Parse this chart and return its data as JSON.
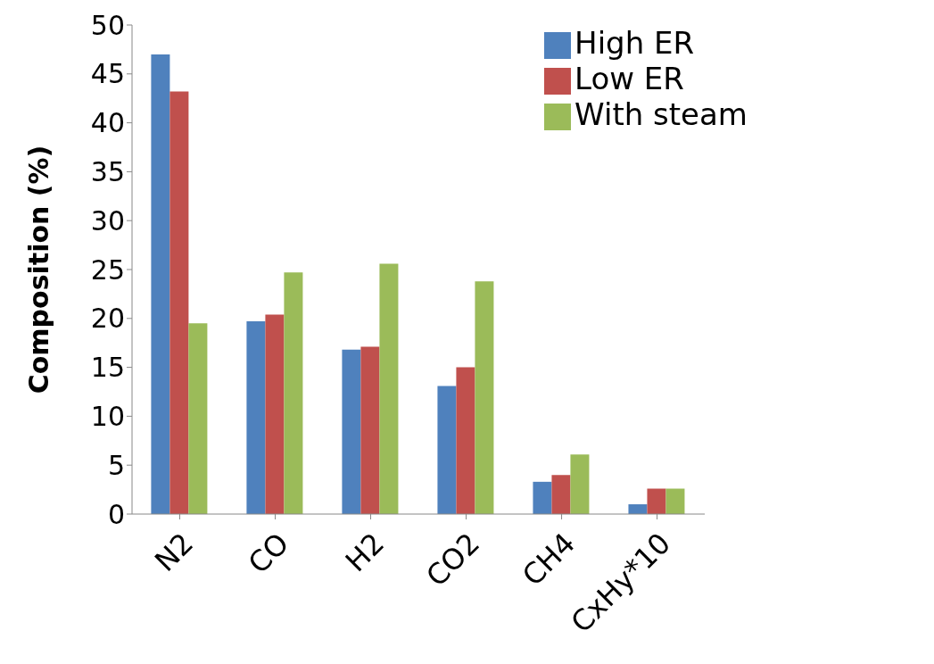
{
  "chart_data": {
    "type": "bar",
    "ylabel": "Composition (%)",
    "categories": [
      "N2",
      "CO",
      "H2",
      "CO2",
      "CH4",
      "CxHy*10"
    ],
    "series": [
      {
        "name": "High ER",
        "color": "#4f81bd",
        "values": [
          47,
          19.7,
          16.8,
          13.1,
          3.3,
          1
        ]
      },
      {
        "name": "Low ER",
        "color": "#c0504d",
        "values": [
          43.2,
          20.4,
          17.1,
          15,
          4,
          2.6
        ]
      },
      {
        "name": "With steam",
        "color": "#9bbb59",
        "values": [
          19.5,
          24.7,
          25.6,
          23.8,
          6.1,
          2.6
        ]
      }
    ],
    "ylim": [
      0,
      50
    ],
    "yticks": [
      0,
      5,
      10,
      15,
      20,
      25,
      30,
      35,
      40,
      45,
      50
    ],
    "grid": false,
    "legend": "top right"
  }
}
